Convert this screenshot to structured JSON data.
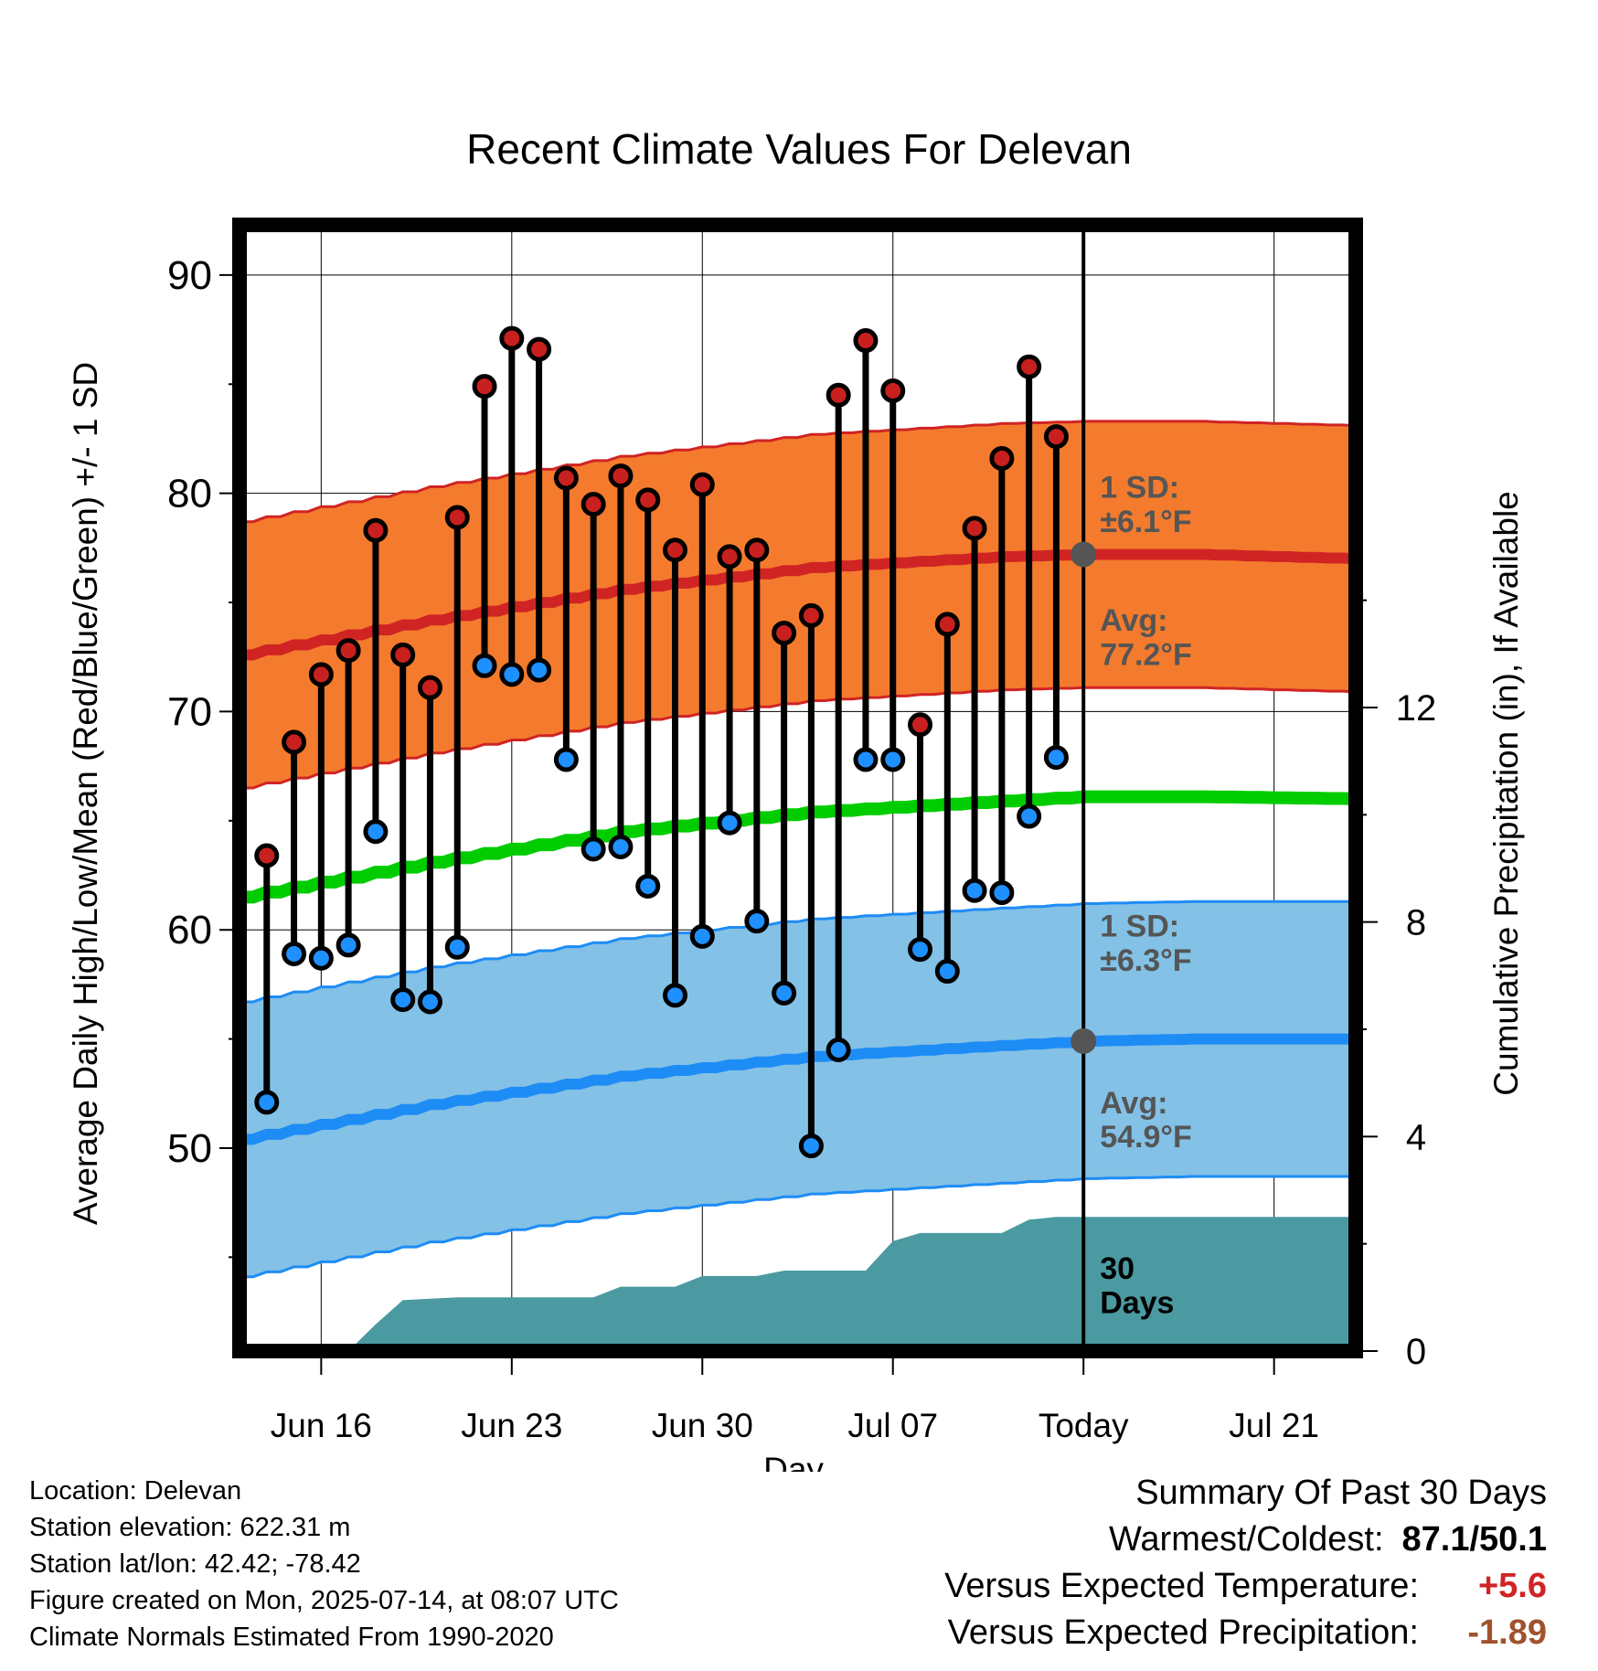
{
  "chart_data": {
    "type": "line",
    "title": "Recent Climate Values For Delevan",
    "xlabel": "Day",
    "ylabel": "Average Daily High/Low/Mean (Red/Blue/Green) +/- 1 SD",
    "y2label": "Cumulative Precipitation (in), If Available",
    "x_range": [
      "2025-06-13",
      "2025-07-24"
    ],
    "ylim": [
      40.7,
      92.3
    ],
    "y2lim": [
      0,
      21
    ],
    "y_ticks": [
      50,
      60,
      70,
      80,
      90
    ],
    "y2_ticks": [
      0,
      4,
      8,
      12
    ],
    "x_ticks": [
      {
        "date": "2025-06-16",
        "label": "Jun 16"
      },
      {
        "date": "2025-06-23",
        "label": "Jun 23"
      },
      {
        "date": "2025-06-30",
        "label": "Jun 30"
      },
      {
        "date": "2025-07-07",
        "label": "Jul 07"
      },
      {
        "date": "2025-07-14",
        "label": "Today"
      },
      {
        "date": "2025-07-21",
        "label": "Jul 21"
      }
    ],
    "grid": true,
    "today": "2025-07-14",
    "observed": [
      {
        "date": "2025-06-14",
        "high": 63.4,
        "low": 52.1
      },
      {
        "date": "2025-06-15",
        "high": 68.6,
        "low": 58.9
      },
      {
        "date": "2025-06-16",
        "high": 71.7,
        "low": 58.7
      },
      {
        "date": "2025-06-17",
        "high": 72.8,
        "low": 59.3
      },
      {
        "date": "2025-06-18",
        "high": 78.3,
        "low": 64.5
      },
      {
        "date": "2025-06-19",
        "high": 72.6,
        "low": 56.8
      },
      {
        "date": "2025-06-20",
        "high": 71.1,
        "low": 56.7
      },
      {
        "date": "2025-06-21",
        "high": 78.9,
        "low": 59.2
      },
      {
        "date": "2025-06-22",
        "high": 84.9,
        "low": 72.1
      },
      {
        "date": "2025-06-23",
        "high": 87.1,
        "low": 71.7
      },
      {
        "date": "2025-06-24",
        "high": 86.6,
        "low": 71.9
      },
      {
        "date": "2025-06-25",
        "high": 80.7,
        "low": 67.8
      },
      {
        "date": "2025-06-26",
        "high": 79.5,
        "low": 63.7
      },
      {
        "date": "2025-06-27",
        "high": 80.8,
        "low": 63.8
      },
      {
        "date": "2025-06-28",
        "high": 79.7,
        "low": 62.0
      },
      {
        "date": "2025-06-29",
        "high": 77.4,
        "low": 57.0
      },
      {
        "date": "2025-06-30",
        "high": 80.4,
        "low": 59.7
      },
      {
        "date": "2025-07-01",
        "high": 77.1,
        "low": 64.9
      },
      {
        "date": "2025-07-02",
        "high": 77.4,
        "low": 60.4
      },
      {
        "date": "2025-07-03",
        "high": 73.6,
        "low": 57.1
      },
      {
        "date": "2025-07-04",
        "high": 74.4,
        "low": 50.1
      },
      {
        "date": "2025-07-05",
        "high": 84.5,
        "low": 54.5
      },
      {
        "date": "2025-07-06",
        "high": 87.0,
        "low": 67.8
      },
      {
        "date": "2025-07-07",
        "high": 84.7,
        "low": 67.8
      },
      {
        "date": "2025-07-08",
        "high": 69.4,
        "low": 59.1
      },
      {
        "date": "2025-07-09",
        "high": 74.0,
        "low": 58.1
      },
      {
        "date": "2025-07-10",
        "high": 78.4,
        "low": 61.8
      },
      {
        "date": "2025-07-11",
        "high": 81.6,
        "low": 61.7
      },
      {
        "date": "2025-07-12",
        "high": 85.8,
        "low": 65.2
      },
      {
        "date": "2025-07-13",
        "high": 82.6,
        "low": 67.9
      }
    ],
    "normals": {
      "high_avg": [
        {
          "date": "2025-06-13",
          "value": 72.6
        },
        {
          "date": "2025-06-20",
          "value": 74.2
        },
        {
          "date": "2025-06-27",
          "value": 75.6
        },
        {
          "date": "2025-07-04",
          "value": 76.6
        },
        {
          "date": "2025-07-11",
          "value": 77.1
        },
        {
          "date": "2025-07-14",
          "value": 77.2
        },
        {
          "date": "2025-07-18",
          "value": 77.2
        },
        {
          "date": "2025-07-24",
          "value": 77.0
        }
      ],
      "high_sd": 6.1,
      "low_avg": [
        {
          "date": "2025-06-13",
          "value": 50.4
        },
        {
          "date": "2025-06-20",
          "value": 52.0
        },
        {
          "date": "2025-06-27",
          "value": 53.3
        },
        {
          "date": "2025-07-04",
          "value": 54.2
        },
        {
          "date": "2025-07-11",
          "value": 54.7
        },
        {
          "date": "2025-07-14",
          "value": 54.9
        },
        {
          "date": "2025-07-18",
          "value": 55.0
        },
        {
          "date": "2025-07-24",
          "value": 55.0
        }
      ],
      "low_sd": 6.3,
      "mean_avg": [
        {
          "date": "2025-06-13",
          "value": 61.5
        },
        {
          "date": "2025-06-20",
          "value": 63.1
        },
        {
          "date": "2025-06-27",
          "value": 64.5
        },
        {
          "date": "2025-07-04",
          "value": 65.4
        },
        {
          "date": "2025-07-11",
          "value": 65.9
        },
        {
          "date": "2025-07-14",
          "value": 66.1
        },
        {
          "date": "2025-07-18",
          "value": 66.1
        },
        {
          "date": "2025-07-24",
          "value": 66.0
        }
      ]
    },
    "precip_cumulative": [
      {
        "date": "2025-06-17",
        "value": 0.0
      },
      {
        "date": "2025-06-18",
        "value": 0.5
      },
      {
        "date": "2025-06-19",
        "value": 0.95
      },
      {
        "date": "2025-06-21",
        "value": 1.0
      },
      {
        "date": "2025-06-26",
        "value": 1.0
      },
      {
        "date": "2025-06-27",
        "value": 1.2
      },
      {
        "date": "2025-06-29",
        "value": 1.2
      },
      {
        "date": "2025-06-30",
        "value": 1.4
      },
      {
        "date": "2025-07-02",
        "value": 1.4
      },
      {
        "date": "2025-07-03",
        "value": 1.5
      },
      {
        "date": "2025-07-06",
        "value": 1.5
      },
      {
        "date": "2025-07-07",
        "value": 2.05
      },
      {
        "date": "2025-07-08",
        "value": 2.2
      },
      {
        "date": "2025-07-11",
        "value": 2.2
      },
      {
        "date": "2025-07-12",
        "value": 2.45
      },
      {
        "date": "2025-07-13",
        "value": 2.5
      },
      {
        "date": "2025-07-24",
        "value": 2.5
      }
    ],
    "annotations": {
      "high_sd_label": [
        "1 SD:",
        "±6.1°F"
      ],
      "high_avg_label": [
        "Avg:",
        "77.2°F"
      ],
      "low_sd_label": [
        "1 SD:",
        "±6.3°F"
      ],
      "low_avg_label": [
        "Avg:",
        "54.9°F"
      ],
      "precip_label": [
        "30",
        "Days"
      ]
    },
    "colors": {
      "high_point": "#c8201e",
      "low_point": "#1e90ff",
      "high_band": "#f47b2d",
      "high_line": "#d02424",
      "low_band": "#83c1e6",
      "low_line": "#1e8cf5",
      "mean_line": "#00cc00",
      "precip": "#4b9aa1",
      "annotation": "#555555"
    }
  },
  "info": {
    "location": "Location: Delevan",
    "elevation": "Station elevation: 622.31 m",
    "latlon": "Station lat/lon: 42.42; -78.42",
    "created": "Figure created on Mon, 2025-07-14, at 08:07 UTC",
    "normals": "Climate Normals Estimated From 1990-2020"
  },
  "summary": {
    "title": "Summary Of Past 30 Days",
    "warm_cold_label": "Warmest/Coldest:",
    "warm_cold_value": "87.1/50.1",
    "temp_label": "Versus Expected Temperature:",
    "temp_value": "+5.6",
    "temp_color": "#d02424",
    "precip_label": "Versus Expected Precipitation:",
    "precip_value": "-1.89",
    "precip_color": "#a0522d"
  }
}
